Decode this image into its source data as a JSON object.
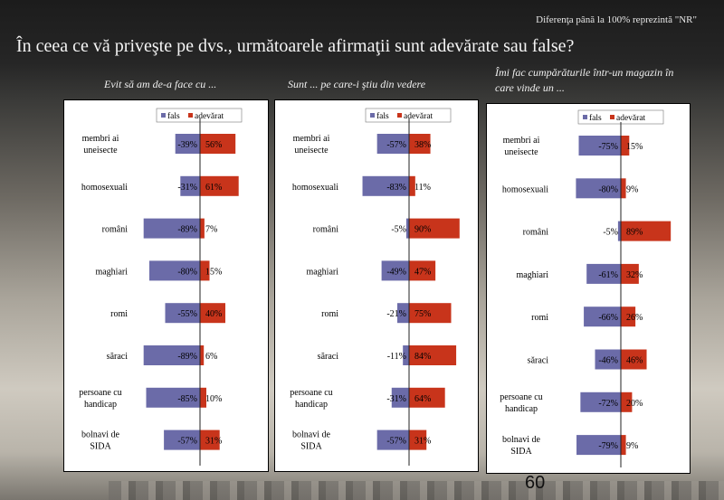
{
  "note": "Diferenţa până la 100% reprezintă  \"NR\"",
  "title": "În ceea ce vă priveşte pe dvs., următoarele afirmaţii sunt adevărate sau false?",
  "page_number": "60",
  "colors": {
    "fals": "#6b6ba8",
    "adevarat": "#c8341b"
  },
  "chart_data": [
    {
      "type": "bar",
      "subtitle": "Evit să am de-a face cu ...",
      "legend": [
        "fals",
        "adevărat"
      ],
      "legend_position": "top-right",
      "categories": [
        "membri ai uneisecte",
        "homosexuali",
        "români",
        "maghiari",
        "romi",
        "săraci",
        "persoane cu handicap",
        "bolnavi de SIDA"
      ],
      "series": [
        {
          "name": "fals",
          "values": [
            -39,
            -31,
            -89,
            -80,
            -55,
            -89,
            -85,
            -57
          ]
        },
        {
          "name": "adevărat",
          "values": [
            56,
            61,
            7,
            15,
            40,
            6,
            10,
            31
          ]
        }
      ]
    },
    {
      "type": "bar",
      "subtitle": "Sunt ... pe care-i ştiu din vedere",
      "legend": [
        "fals",
        "adevărat"
      ],
      "legend_position": "top-right",
      "categories": [
        "membri ai uneisecte",
        "homosexuali",
        "români",
        "maghiari",
        "romi",
        "săraci",
        "persoane cu handicap",
        "bolnavi de SIDA"
      ],
      "series": [
        {
          "name": "fals",
          "values": [
            -57,
            -83,
            -5,
            -49,
            -21,
            -11,
            -31,
            -57
          ]
        },
        {
          "name": "adevărat",
          "values": [
            38,
            11,
            90,
            47,
            75,
            84,
            64,
            31
          ]
        }
      ]
    },
    {
      "type": "bar",
      "subtitle": "Îmi fac cumpărăturile într-un magazin în care vinde un ...",
      "legend": [
        "fals",
        "adevărat"
      ],
      "legend_position": "top-right",
      "categories": [
        "membri ai uneisecte",
        "homosexuali",
        "români",
        "maghiari",
        "romi",
        "săraci",
        "persoane cu handicap",
        "bolnavi de SIDA"
      ],
      "series": [
        {
          "name": "fals",
          "values": [
            -75,
            -80,
            -5,
            -61,
            -66,
            -46,
            -72,
            -79
          ]
        },
        {
          "name": "adevărat",
          "values": [
            15,
            9,
            89,
            32,
            26,
            46,
            20,
            9
          ]
        }
      ]
    }
  ]
}
